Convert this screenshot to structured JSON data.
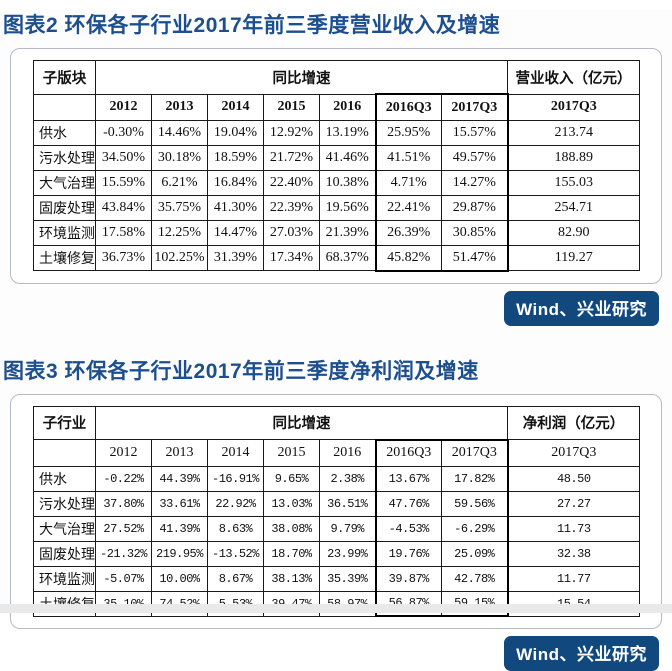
{
  "page": {
    "accent_blue": "#1d4f8e",
    "badge_blue": "#11497f"
  },
  "figure2": {
    "title": "图表2 环保各子行业2017年前三季度营业收入及增速",
    "source": "Wind、兴业研究",
    "table": {
      "corner_header": "子版块",
      "group_header": "同比增速",
      "value_header": "营业收入（亿元）",
      "value_sub_header": "2017Q3",
      "year_headers": [
        "2012",
        "2013",
        "2014",
        "2015",
        "2016",
        "2016Q3",
        "2017Q3"
      ],
      "highlight_columns": [
        5,
        6
      ],
      "rows": [
        {
          "label": "供水",
          "values": [
            "-0.30%",
            "14.46%",
            "19.04%",
            "12.92%",
            "13.19%",
            "25.95%",
            "15.57%"
          ],
          "amount": "213.74"
        },
        {
          "label": "污水处理",
          "values": [
            "34.50%",
            "30.18%",
            "18.59%",
            "21.72%",
            "41.46%",
            "41.51%",
            "49.57%"
          ],
          "amount": "188.89"
        },
        {
          "label": "大气治理",
          "values": [
            "15.59%",
            "6.21%",
            "16.84%",
            "22.40%",
            "10.38%",
            "4.71%",
            "14.27%"
          ],
          "amount": "155.03"
        },
        {
          "label": "固废处理",
          "values": [
            "43.84%",
            "35.75%",
            "41.30%",
            "22.39%",
            "19.56%",
            "22.41%",
            "29.87%"
          ],
          "amount": "254.71"
        },
        {
          "label": "环境监测",
          "values": [
            "17.58%",
            "12.25%",
            "14.47%",
            "27.03%",
            "21.39%",
            "26.39%",
            "30.85%"
          ],
          "amount": "82.90"
        },
        {
          "label": "土壤修复",
          "values": [
            "36.73%",
            "102.25%",
            "31.39%",
            "17.34%",
            "68.37%",
            "45.82%",
            "51.47%"
          ],
          "amount": "119.27"
        }
      ]
    }
  },
  "figure3": {
    "title": "图表3 环保各子行业2017年前三季度净利润及增速",
    "source": "Wind、兴业研究",
    "table": {
      "corner_header": "子行业",
      "group_header": "同比增速",
      "value_header": "净利润（亿元）",
      "value_sub_header": "2017Q3",
      "year_headers": [
        "2012",
        "2013",
        "2014",
        "2015",
        "2016",
        "2016Q3",
        "2017Q3"
      ],
      "highlight_columns": [
        5,
        6
      ],
      "rows": [
        {
          "label": "供水",
          "values": [
            "-0.22%",
            "44.39%",
            "-16.91%",
            "9.65%",
            "2.38%",
            "13.67%",
            "17.82%"
          ],
          "amount": "48.50"
        },
        {
          "label": "污水处理",
          "values": [
            "37.80%",
            "33.61%",
            "22.92%",
            "13.03%",
            "36.51%",
            "47.76%",
            "59.56%"
          ],
          "amount": "27.27"
        },
        {
          "label": "大气治理",
          "values": [
            "27.52%",
            "41.39%",
            "8.63%",
            "38.08%",
            "9.79%",
            "-4.53%",
            "-6.29%"
          ],
          "amount": "11.73"
        },
        {
          "label": "固废处理",
          "values": [
            "-21.32%",
            "219.95%",
            "-13.52%",
            "18.70%",
            "23.99%",
            "19.76%",
            "25.09%"
          ],
          "amount": "32.38"
        },
        {
          "label": "环境监测",
          "values": [
            "-5.07%",
            "10.00%",
            "8.67%",
            "38.13%",
            "35.39%",
            "39.87%",
            "42.78%"
          ],
          "amount": "11.77"
        },
        {
          "label": "土壤修复",
          "values": [
            "35.10%",
            "74.52%",
            "5.53%",
            "39.47%",
            "58.97%",
            "56.87%",
            "59.15%"
          ],
          "amount": "15.54"
        }
      ]
    }
  }
}
